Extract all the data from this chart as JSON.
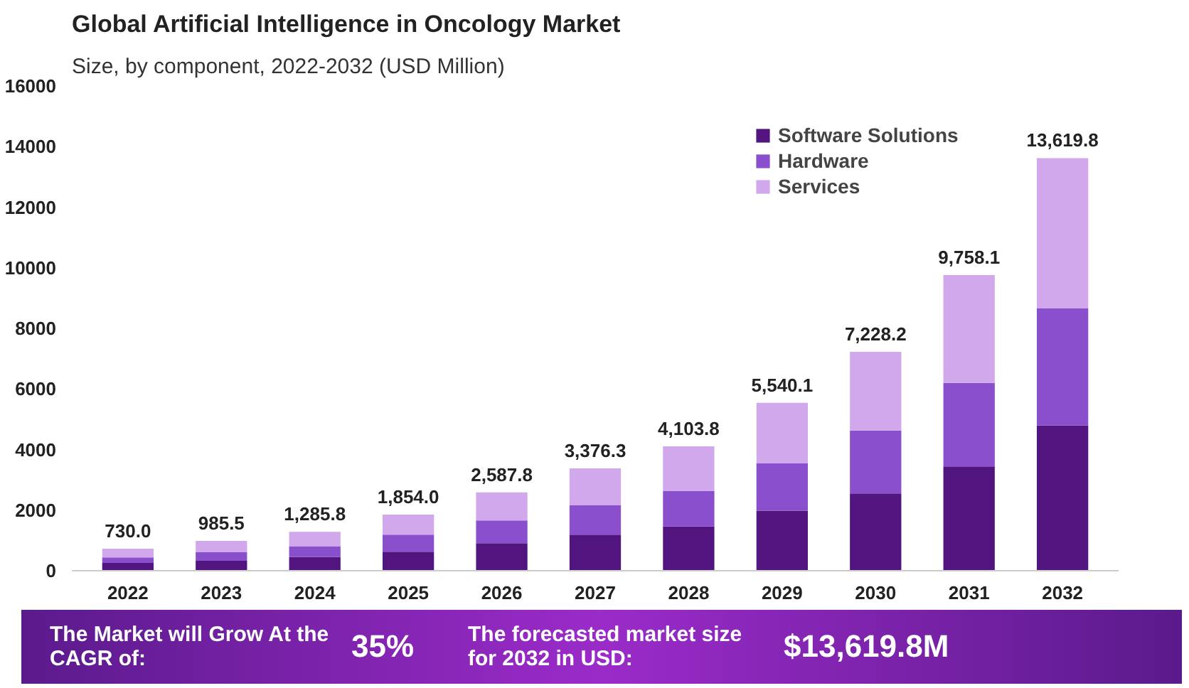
{
  "chart_data": {
    "type": "bar",
    "title": "Global Artificial Intelligence in Oncology Market",
    "subtitle": "Size, by component, 2022-2032 (USD Million)",
    "categories": [
      "2022",
      "2023",
      "2024",
      "2025",
      "2026",
      "2027",
      "2028",
      "2029",
      "2030",
      "2031",
      "2032"
    ],
    "stacked": true,
    "series": [
      {
        "name": "Software Solutions",
        "color": "#521580",
        "values": [
          260,
          330,
          450,
          630,
          910,
          1190,
          1460,
          1980,
          2550,
          3440,
          4800
        ]
      },
      {
        "name": "Hardware",
        "color": "#8a4fcc",
        "values": [
          180,
          280,
          360,
          560,
          750,
          970,
          1170,
          1560,
          2080,
          2760,
          3870
        ]
      },
      {
        "name": "Services",
        "color": "#d1a8ec",
        "values": [
          290,
          375.5,
          475.8,
          664,
          927.8,
          1216.3,
          1473.8,
          2000.1,
          2598.2,
          3558.1,
          4949.8
        ]
      }
    ],
    "totals": [
      "730.0",
      "985.5",
      "1,285.8",
      "1,854.0",
      "2,587.8",
      "3,376.3",
      "4,103.8",
      "5,540.1",
      "7,228.2",
      "9,758.1",
      "13,619.8"
    ],
    "ylim": [
      0,
      16000
    ],
    "yticks": [
      0,
      2000,
      4000,
      6000,
      8000,
      10000,
      12000,
      14000,
      16000
    ],
    "grid": false,
    "legend": "top right",
    "annotations": [
      "The Market will Grow At the CAGR of:",
      "35%",
      "The forecasted market size for 2032 in USD:",
      "$13,619.8M"
    ]
  }
}
